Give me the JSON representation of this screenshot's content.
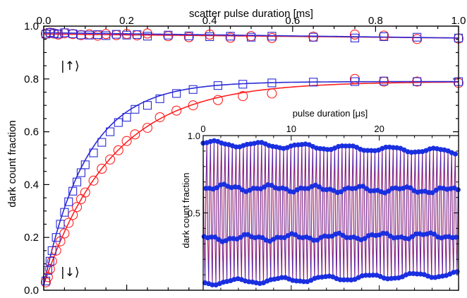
{
  "chart_data": [
    {
      "type": "scatter",
      "xlabel": "scatter pulse duration [ms]",
      "ylabel": "dark count fraction",
      "xlim": [
        0,
        1.0
      ],
      "ylim": [
        0,
        1.0
      ],
      "xticks": [
        "0.0",
        "0.2",
        "0.4",
        "0.6",
        "0.8",
        "1.0"
      ],
      "yticks": [
        "0.0",
        "0.2",
        "0.4",
        "0.6",
        "0.8",
        "1.0"
      ],
      "x_axis_position": "top and bottom",
      "grid": false,
      "annotations": [
        "|↑⟩",
        "|↓⟩"
      ],
      "colors": {
        "red": "#ff2020",
        "blue": "#2a2ad6"
      },
      "series": [
        {
          "marker": "circle",
          "color": "red",
          "x": [
            0.005,
            0.015,
            0.025,
            0.035,
            0.05,
            0.07,
            0.09,
            0.11,
            0.13,
            0.15,
            0.175,
            0.2,
            0.225,
            0.25,
            0.3,
            0.35,
            0.4,
            0.45,
            0.5,
            0.55,
            0.65,
            0.75,
            0.82,
            0.9,
            1.0
          ],
          "y": [
            0.971,
            0.975,
            0.972,
            0.968,
            0.973,
            0.97,
            0.966,
            0.969,
            0.964,
            0.97,
            0.966,
            0.97,
            0.965,
            0.972,
            0.962,
            0.958,
            0.968,
            0.956,
            0.962,
            0.955,
            0.96,
            0.968,
            0.964,
            0.951,
            0.953
          ]
        },
        {
          "marker": "square",
          "color": "blue",
          "x": [
            0.005,
            0.015,
            0.025,
            0.035,
            0.05,
            0.07,
            0.09,
            0.11,
            0.13,
            0.15,
            0.175,
            0.2,
            0.225,
            0.25,
            0.3,
            0.35,
            0.4,
            0.45,
            0.5,
            0.55,
            0.65,
            0.75,
            0.82,
            0.9,
            1.0
          ],
          "y": [
            0.97,
            0.976,
            0.972,
            0.97,
            0.975,
            0.971,
            0.967,
            0.966,
            0.968,
            0.964,
            0.969,
            0.966,
            0.968,
            0.962,
            0.966,
            0.963,
            0.96,
            0.962,
            0.958,
            0.962,
            0.958,
            0.955,
            0.96,
            0.958,
            0.955
          ]
        },
        {
          "marker": "circle",
          "color": "red",
          "x": [
            0.005,
            0.01,
            0.015,
            0.02,
            0.03,
            0.04,
            0.05,
            0.06,
            0.07,
            0.08,
            0.09,
            0.1,
            0.12,
            0.14,
            0.16,
            0.18,
            0.2,
            0.22,
            0.25,
            0.28,
            0.32,
            0.36,
            0.42,
            0.48,
            0.55,
            0.75,
            0.82,
            0.9,
            1.0
          ],
          "y": [
            0.03,
            0.05,
            0.08,
            0.11,
            0.15,
            0.185,
            0.215,
            0.255,
            0.285,
            0.315,
            0.345,
            0.37,
            0.415,
            0.46,
            0.495,
            0.53,
            0.565,
            0.59,
            0.615,
            0.655,
            0.68,
            0.7,
            0.72,
            0.735,
            0.745,
            0.8,
            0.79,
            0.79,
            0.785
          ]
        },
        {
          "marker": "square",
          "color": "blue",
          "x": [
            0.005,
            0.01,
            0.015,
            0.02,
            0.03,
            0.04,
            0.05,
            0.06,
            0.07,
            0.08,
            0.09,
            0.1,
            0.12,
            0.14,
            0.16,
            0.18,
            0.2,
            0.22,
            0.25,
            0.28,
            0.32,
            0.36,
            0.42,
            0.48,
            0.55,
            0.65,
            0.75,
            0.82,
            0.9,
            1.0
          ],
          "y": [
            0.035,
            0.075,
            0.11,
            0.15,
            0.2,
            0.25,
            0.295,
            0.335,
            0.375,
            0.41,
            0.445,
            0.475,
            0.52,
            0.56,
            0.6,
            0.635,
            0.655,
            0.685,
            0.7,
            0.725,
            0.745,
            0.76,
            0.775,
            0.78,
            0.785,
            0.788,
            0.79,
            0.792,
            0.79,
            0.79
          ]
        }
      ],
      "fits": [
        {
          "color": "red",
          "form": "plateau",
          "value": 0.97,
          "end_value": 0.955
        },
        {
          "color": "blue",
          "form": "plateau",
          "value": 0.975,
          "end_value": 0.955
        },
        {
          "color": "red",
          "form": "exponential",
          "asymptote": 0.79,
          "tau_ms": 0.165,
          "start": 0.02
        },
        {
          "color": "blue",
          "form": "exponential",
          "asymptote": 0.79,
          "tau_ms": 0.105,
          "start": 0.02
        }
      ]
    },
    {
      "type": "line",
      "xlabel": "pulse duration [μs]",
      "ylabel": "dark count fraction",
      "xlim": [
        0,
        29
      ],
      "ylim": [
        0,
        1.0
      ],
      "xticks": [
        "0",
        "10",
        "20"
      ],
      "yticks": [
        "1.0",
        "0.5"
      ],
      "oscillation_period_us": 0.415,
      "samples_per_period": 4,
      "n_points": 320,
      "amplitude_range": [
        0.02,
        0.98
      ],
      "colors": {
        "line": "#ff2020",
        "marker": "#1a2fe0"
      }
    }
  ]
}
